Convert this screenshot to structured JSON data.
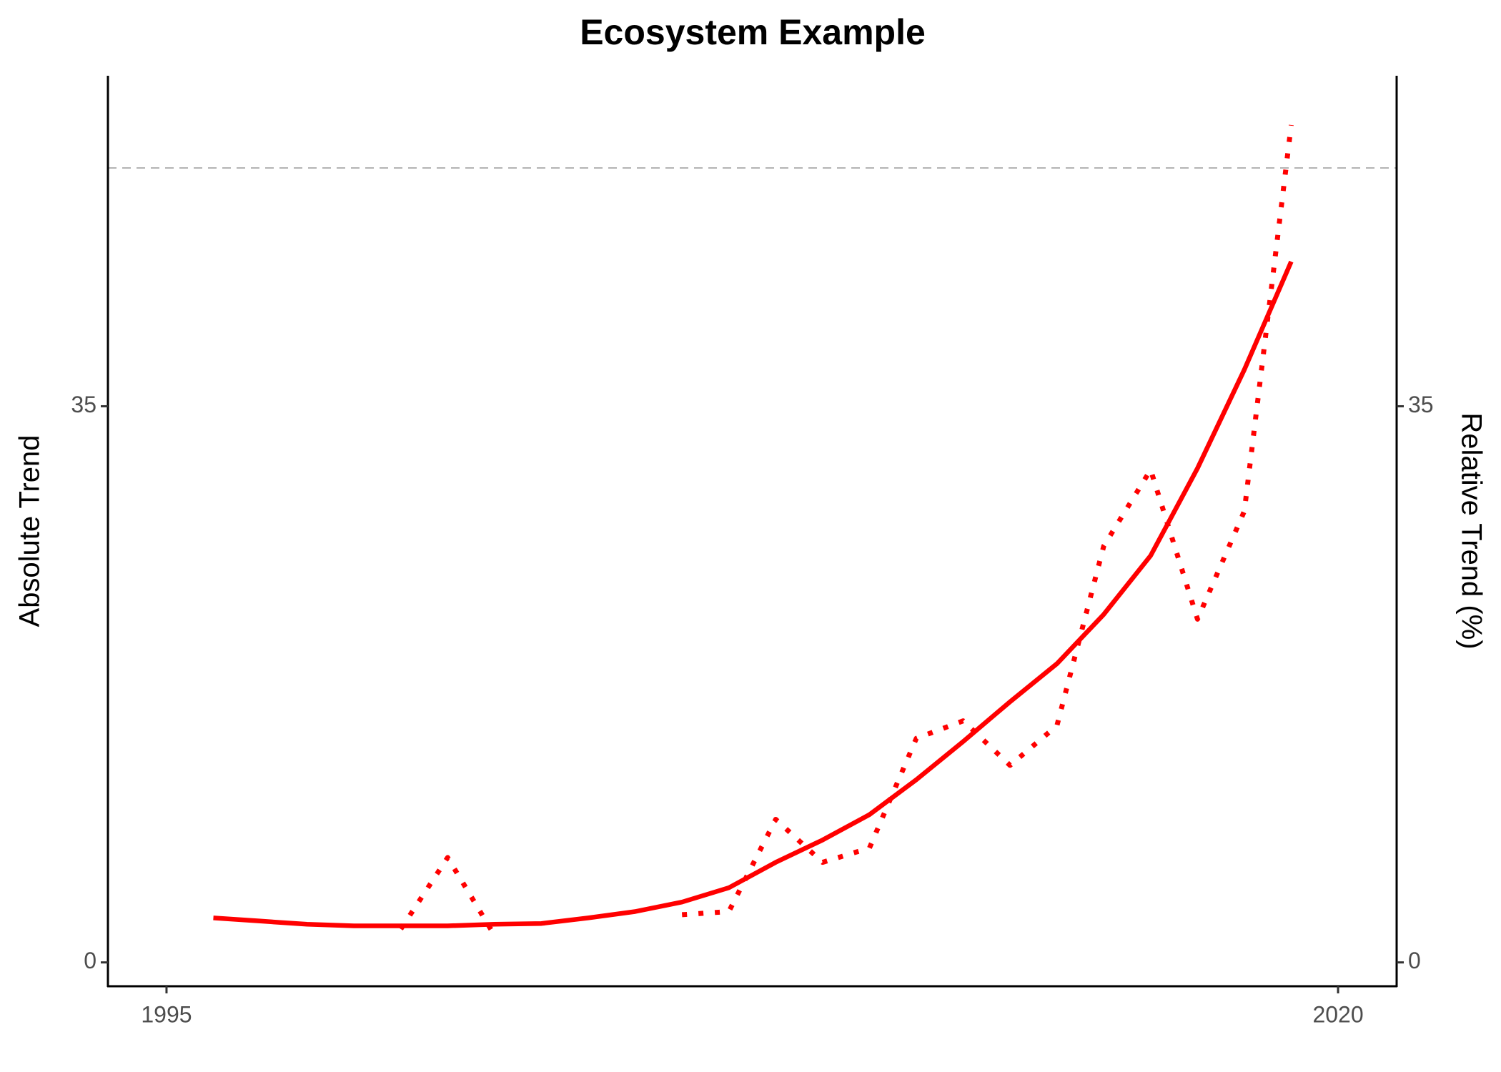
{
  "chart_data": {
    "type": "line",
    "title": "Ecosystem Example",
    "ylabel": "Absolute Trend",
    "y2label": "Relative Trend (%)",
    "x": [
      1996,
      1997,
      1998,
      1999,
      2000,
      2001,
      2002,
      2003,
      2004,
      2005,
      2006,
      2007,
      2008,
      2009,
      2010,
      2011,
      2012,
      2013,
      2014,
      2015,
      2016,
      2017,
      2018,
      2019
    ],
    "series": [
      {
        "color": "#ff0000",
        "dash": "dotted",
        "axis": "y2",
        "values": [
          null,
          null,
          null,
          null,
          2.1,
          6.6,
          1.7,
          null,
          null,
          null,
          3.0,
          3.2,
          9.0,
          6.3,
          7.2,
          14.1,
          15.2,
          12.4,
          14.9,
          26.2,
          31.0,
          21.6,
          28.4,
          52.7
        ]
      },
      {
        "color": "#ff0000",
        "dash": "solid",
        "values": [
          2.8,
          2.6,
          2.4,
          2.3,
          2.3,
          2.3,
          2.4,
          2.45,
          2.8,
          3.2,
          3.8,
          4.7,
          6.3,
          7.7,
          9.3,
          11.5,
          13.9,
          16.4,
          18.8,
          21.9,
          25.6,
          31.1,
          37.3,
          44.1
        ]
      }
    ],
    "hline": 50,
    "hline_color": "#b3b3b3",
    "xlim": [
      1993.75,
      2021.25
    ],
    "xticks": [
      1995,
      2020
    ],
    "ylim": [
      -1.5,
      55.8
    ],
    "yticks": [
      0,
      35
    ],
    "y2lim": [
      -1.5,
      55.8
    ],
    "y2ticks": [
      0,
      35
    ]
  }
}
